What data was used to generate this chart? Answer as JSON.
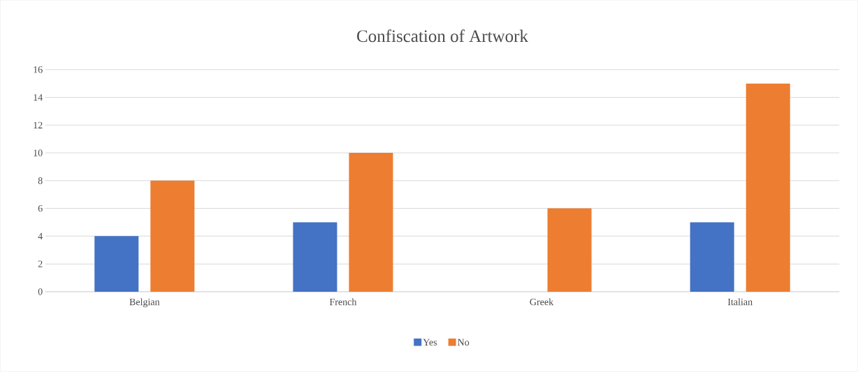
{
  "chart_data": {
    "type": "bar",
    "title": "Confiscation of Artwork",
    "categories": [
      "Belgian",
      "French",
      "Greek",
      "Italian"
    ],
    "series": [
      {
        "name": "Yes",
        "color": "#4472c4",
        "values": [
          4,
          5,
          0,
          5
        ]
      },
      {
        "name": "No",
        "color": "#ed7d31",
        "values": [
          8,
          10,
          6,
          15
        ]
      }
    ],
    "ylim": [
      0,
      16
    ],
    "yticks": [
      0,
      2,
      4,
      6,
      8,
      10,
      12,
      14,
      16
    ],
    "grid": "y",
    "legend": "bottom"
  }
}
